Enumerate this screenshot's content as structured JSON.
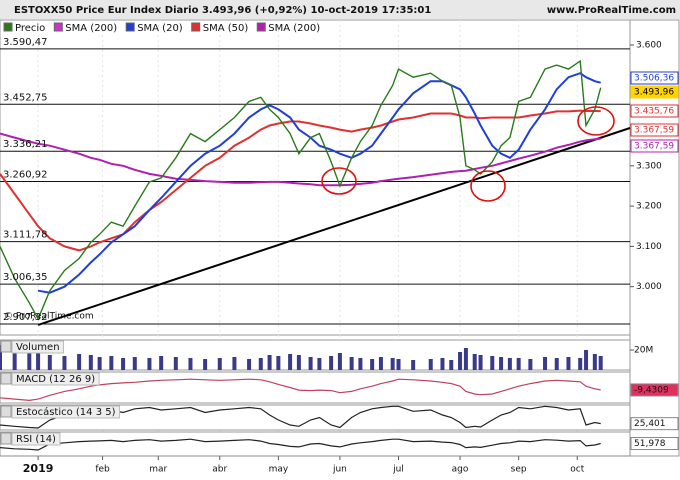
{
  "chart_data": {
    "type": "line",
    "title": "ESTOXX50 Price Eur Index Diario 3.493,96 (+0,92%) 10-oct-2019 17:35:01",
    "source": "www.ProRealTime.com",
    "watermark": "© ProRealTime.com",
    "xlim": [
      0,
      215
    ],
    "xticks": [
      {
        "value": 13,
        "label": "2019"
      },
      {
        "value": 35,
        "label": "feb"
      },
      {
        "value": 54,
        "label": "mar"
      },
      {
        "value": 75,
        "label": "abr"
      },
      {
        "value": 95,
        "label": "may"
      },
      {
        "value": 116,
        "label": "jun"
      },
      {
        "value": 136,
        "label": "jul"
      },
      {
        "value": 157,
        "label": "ago"
      },
      {
        "value": 177,
        "label": "sep"
      },
      {
        "value": 197,
        "label": "oct"
      }
    ],
    "ylim": [
      2880,
      3662
    ],
    "yticks": [
      {
        "value": 3000,
        "label": "3.000"
      },
      {
        "value": 3100,
        "label": "3.100"
      },
      {
        "value": 3200,
        "label": "3.200"
      },
      {
        "value": 3300,
        "label": "3.300"
      },
      {
        "value": 3600,
        "label": "3.600"
      }
    ],
    "levels": [
      {
        "value": 3590.47,
        "label": "3.590,47"
      },
      {
        "value": 3452.75,
        "label": "3.452,75"
      },
      {
        "value": 3336.21,
        "label": "3.336,21"
      },
      {
        "value": 3260.92,
        "label": "3.260,92"
      },
      {
        "value": 3111.78,
        "label": "3.111,78"
      },
      {
        "value": 3006.35,
        "label": "3.006,35"
      },
      {
        "value": 2907.32,
        "label": "2.907,32"
      }
    ],
    "price_labels": [
      {
        "value": 3506.36,
        "label": "3.506,36",
        "color": "#1f3fd6"
      },
      {
        "value": 3493.96,
        "label": "3.493,96",
        "color": "#ffd400"
      },
      {
        "value": 3435.76,
        "label": "3.435,76",
        "color": "#e03030"
      },
      {
        "value": 3367.59,
        "label": "3.367,59",
        "color": "#e03030"
      },
      {
        "value": 3367.59,
        "label": "3.367,59",
        "color": "#b020b0"
      }
    ],
    "extra_legend": {
      "name": "SMA (200)",
      "color": "#cc33cc"
    },
    "trendline": {
      "x": [
        13,
        215
      ],
      "values": [
        2905,
        3394
      ],
      "color": "#000000"
    },
    "x": [
      0,
      5,
      10,
      13,
      17,
      22,
      27,
      31,
      34,
      38,
      42,
      46,
      51,
      55,
      60,
      65,
      70,
      75,
      80,
      85,
      89,
      92,
      95,
      99,
      102,
      106,
      109,
      113,
      116,
      120,
      123,
      127,
      130,
      134,
      136,
      141,
      147,
      151,
      154,
      157,
      159,
      162,
      164,
      168,
      171,
      174,
      177,
      181,
      186,
      190,
      194,
      198,
      200,
      203,
      205
    ],
    "series": [
      {
        "name": "Precio",
        "color": "#2a7a1a",
        "values": [
          3100,
          3020,
          2960,
          2920,
          2990,
          3040,
          3070,
          3110,
          3130,
          3160,
          3150,
          3200,
          3260,
          3270,
          3320,
          3380,
          3360,
          3390,
          3420,
          3460,
          3470,
          3440,
          3420,
          3380,
          3330,
          3370,
          3380,
          3310,
          3250,
          3320,
          3360,
          3400,
          3450,
          3500,
          3540,
          3520,
          3530,
          3510,
          3500,
          3420,
          3300,
          3290,
          3280,
          3310,
          3350,
          3370,
          3460,
          3470,
          3540,
          3550,
          3540,
          3560,
          3400,
          3440,
          3493.96
        ]
      },
      {
        "name": "SMA (20)",
        "color": "#1f3fd6",
        "values": [
          null,
          null,
          null,
          2990,
          2985,
          3000,
          3030,
          3060,
          3080,
          3110,
          3130,
          3150,
          3190,
          3220,
          3260,
          3300,
          3330,
          3350,
          3380,
          3420,
          3440,
          3450,
          3440,
          3420,
          3390,
          3370,
          3350,
          3340,
          3330,
          3320,
          3330,
          3350,
          3380,
          3420,
          3440,
          3480,
          3510,
          3510,
          3500,
          3490,
          3470,
          3430,
          3400,
          3350,
          3330,
          3320,
          3340,
          3390,
          3440,
          3490,
          3520,
          3530,
          3520,
          3510,
          3506.36
        ]
      },
      {
        "name": "SMA (50)",
        "color": "#e03030",
        "values": [
          3280,
          3230,
          3180,
          3150,
          3120,
          3100,
          3090,
          3100,
          3110,
          3120,
          3130,
          3160,
          3190,
          3210,
          3240,
          3270,
          3300,
          3320,
          3350,
          3370,
          3390,
          3400,
          3405,
          3410,
          3410,
          3405,
          3400,
          3395,
          3390,
          3385,
          3390,
          3395,
          3400,
          3410,
          3415,
          3420,
          3430,
          3430,
          3430,
          3425,
          3420,
          3420,
          3418,
          3420,
          3420,
          3420,
          3420,
          3425,
          3430,
          3435,
          3435,
          3437,
          3436,
          3436,
          3435.76
        ]
      },
      {
        "name": "SMA (200)",
        "color": "#b020b0",
        "values": [
          3380,
          3370,
          3360,
          3355,
          3350,
          3340,
          3330,
          3320,
          3315,
          3305,
          3300,
          3290,
          3280,
          3275,
          3268,
          3265,
          3262,
          3260,
          3258,
          3258,
          3259,
          3260,
          3260,
          3258,
          3256,
          3254,
          3252,
          3252,
          3252,
          3253,
          3255,
          3258,
          3262,
          3266,
          3268,
          3272,
          3278,
          3282,
          3285,
          3287,
          3288,
          3292,
          3295,
          3300,
          3306,
          3312,
          3318,
          3325,
          3335,
          3345,
          3352,
          3360,
          3363,
          3366,
          3367.59
        ]
      }
    ],
    "panels": [
      {
        "type": "bar",
        "name": "Volumen",
        "color": "#3a3a8a",
        "ylim": [
          0,
          30000000
        ],
        "yticks": [
          {
            "value": 20000000,
            "label": "20M"
          }
        ],
        "values": [
          25000000,
          18000000,
          20000000,
          22000000,
          15000000,
          14000000,
          16000000,
          15000000,
          13000000,
          14000000,
          12000000,
          13000000,
          12000000,
          14000000,
          13000000,
          12000000,
          11000000,
          12000000,
          13000000,
          11000000,
          12000000,
          15000000,
          14000000,
          16000000,
          15000000,
          13000000,
          12000000,
          14000000,
          17000000,
          13000000,
          12000000,
          11000000,
          13000000,
          12000000,
          11000000,
          10000000,
          11000000,
          12000000,
          10000000,
          18000000,
          22000000,
          16000000,
          15000000,
          14000000,
          13000000,
          12000000,
          12000000,
          11000000,
          13000000,
          12000000,
          13000000,
          12000000,
          20000000,
          16000000,
          14000000
        ]
      },
      {
        "type": "line",
        "name": "MACD (12 26 9)",
        "color": "#c04060",
        "ylim": [
          -60,
          60
        ],
        "yticks": [
          {
            "value": -9.4309,
            "label": "-9,4309",
            "color": "#e03060"
          }
        ],
        "values": [
          -40,
          -45,
          -50,
          -45,
          -30,
          -15,
          -5,
          5,
          10,
          15,
          18,
          20,
          25,
          28,
          30,
          32,
          30,
          28,
          30,
          32,
          30,
          22,
          12,
          0,
          -10,
          -12,
          -10,
          -12,
          -20,
          -15,
          -5,
          5,
          15,
          25,
          32,
          30,
          25,
          20,
          15,
          5,
          -15,
          -25,
          -28,
          -25,
          -15,
          -5,
          5,
          15,
          25,
          28,
          25,
          22,
          5,
          -5,
          -9.4309
        ]
      },
      {
        "type": "line",
        "name": "Estocástico (14 3 5)",
        "color": "#222222",
        "ylim": [
          0,
          100
        ],
        "yticks": [
          {
            "value": 25.401,
            "label": "25,401",
            "color": "#ffffff"
          }
        ],
        "values": [
          20,
          15,
          10,
          8,
          40,
          60,
          70,
          80,
          85,
          80,
          70,
          85,
          90,
          80,
          85,
          90,
          70,
          80,
          85,
          90,
          85,
          60,
          40,
          20,
          15,
          40,
          50,
          20,
          10,
          50,
          70,
          85,
          90,
          95,
          95,
          75,
          80,
          60,
          50,
          30,
          10,
          15,
          12,
          40,
          60,
          70,
          90,
          85,
          95,
          90,
          80,
          85,
          20,
          30,
          25.401
        ]
      },
      {
        "type": "line",
        "name": "RSI (14)",
        "color": "#222222",
        "ylim": [
          0,
          100
        ],
        "yticks": [
          {
            "value": 51.978,
            "label": "51,978",
            "color": "#ffffff"
          }
        ],
        "values": [
          35,
          30,
          28,
          25,
          50,
          55,
          60,
          62,
          63,
          65,
          60,
          65,
          68,
          62,
          65,
          70,
          60,
          62,
          65,
          68,
          62,
          52,
          48,
          40,
          38,
          50,
          52,
          42,
          38,
          50,
          55,
          60,
          65,
          70,
          70,
          60,
          62,
          58,
          56,
          48,
          35,
          38,
          36,
          45,
          52,
          55,
          62,
          60,
          68,
          66,
          62,
          64,
          42,
          46,
          51.978
        ]
      }
    ]
  }
}
